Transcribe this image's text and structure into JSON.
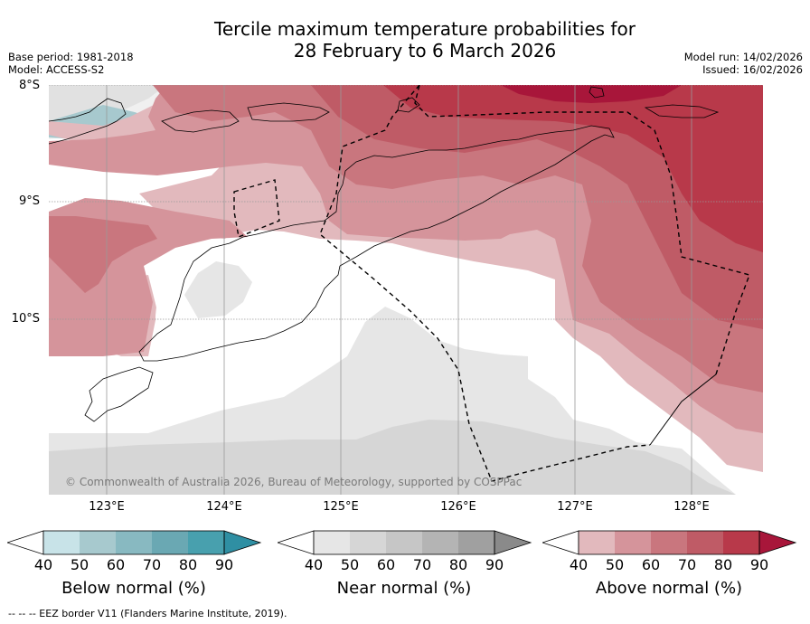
{
  "title": {
    "line1": "Tercile maximum temperature probabilities for",
    "line2": "28 February to 6 March 2026"
  },
  "meta": {
    "base_period": "Base period: 1981-2018",
    "model": "Model: ACCESS-S2",
    "model_run": "Model run: 14/02/2026",
    "issued": "Issued: 16/02/2026"
  },
  "lat_labels": [
    "8°S",
    "9°S",
    "10°S"
  ],
  "lon_labels": [
    "123°E",
    "124°E",
    "125°E",
    "126°E",
    "127°E",
    "128°E"
  ],
  "copyright": "© Commonwealth of Australia 2026, Bureau of Meteorology, supported by COSPPac",
  "colorbars": [
    {
      "label": "Below normal (%)",
      "ticks": [
        "40",
        "50",
        "60",
        "70",
        "80",
        "90"
      ],
      "colors": [
        "#c8e3e8",
        "#a7c9ce",
        "#88b9c1",
        "#6aa8b3",
        "#48a0ae",
        "#2f8fa3"
      ]
    },
    {
      "label": "Near normal (%)",
      "ticks": [
        "40",
        "50",
        "60",
        "70",
        "80",
        "90"
      ],
      "colors": [
        "#e6e6e6",
        "#d6d6d6",
        "#c6c6c6",
        "#b4b4b4",
        "#a0a0a0",
        "#8a8a8a"
      ]
    },
    {
      "label": "Above normal (%)",
      "ticks": [
        "40",
        "50",
        "60",
        "70",
        "80",
        "90"
      ],
      "colors": [
        "#e2b9bd",
        "#d5949b",
        "#c9767e",
        "#bf5b66",
        "#b8394a",
        "#a8163a"
      ]
    }
  ],
  "footer": "--  --  -- EEZ border V11 (Flanders Marine Institute, 2019)."
}
